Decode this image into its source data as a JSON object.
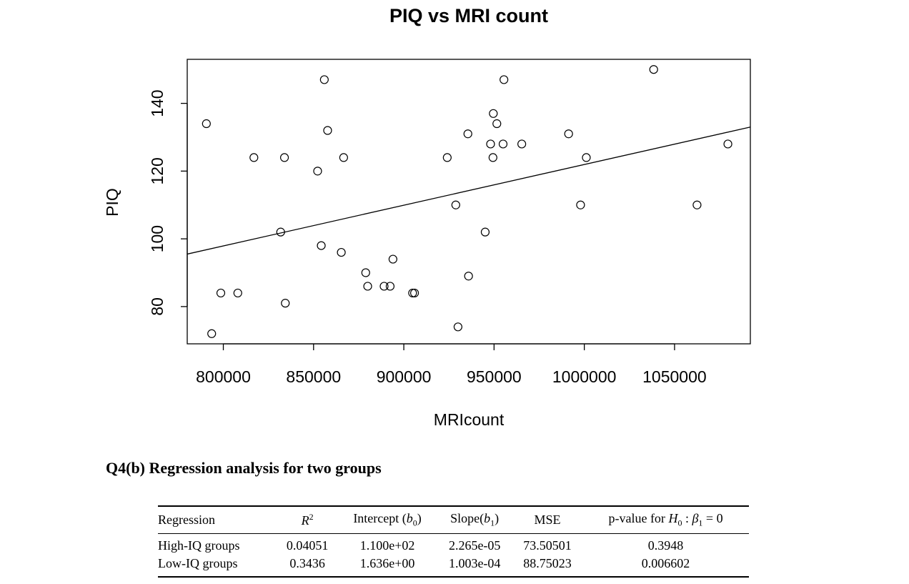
{
  "chart_data": {
    "type": "scatter",
    "title": "PIQ vs MRI count",
    "xlabel": "MRIcount",
    "ylabel": "PIQ",
    "xlim": [
      780000,
      1092000
    ],
    "ylim": [
      69,
      153
    ],
    "xticks": [
      800000,
      850000,
      900000,
      950000,
      1000000,
      1050000
    ],
    "xtick_labels": [
      "800000",
      "850000",
      "900000",
      "950000",
      "1000000",
      "1050000"
    ],
    "yticks": [
      80,
      100,
      120,
      140
    ],
    "ytick_labels": [
      "80",
      "100",
      "120",
      "140"
    ],
    "grid": false,
    "x": [
      790619,
      793549,
      798612,
      808020,
      816932,
      831772,
      833868,
      834344,
      852244,
      854258,
      855960,
      857782,
      865363,
      866662,
      878897,
      879987,
      889083,
      892420,
      893983,
      904858,
      905940,
      924059,
      928799,
      930016,
      935494,
      935863,
      945088,
      948066,
      949395,
      949589,
      951545,
      955003,
      955466,
      965353,
      991305,
      997925,
      1001121,
      1038437,
      1062462,
      1079549
    ],
    "y": [
      134,
      72,
      84,
      84,
      124,
      102,
      124,
      81,
      120,
      98,
      147,
      132,
      96,
      124,
      90,
      86,
      86,
      86,
      94,
      84,
      84,
      124,
      110,
      74,
      131,
      89,
      102,
      128,
      124,
      137,
      134,
      128,
      147,
      128,
      131,
      110,
      124,
      150,
      110,
      128
    ],
    "regression_line": {
      "intercept": 1.744,
      "slope": 0.0001202
    }
  },
  "section": {
    "heading": "Q4(b) Regression analysis for two groups"
  },
  "table": {
    "headers": {
      "regression": "Regression",
      "r2_base": "R",
      "r2_sup": "2",
      "intercept_text": "Intercept (",
      "intercept_var": "b",
      "intercept_sub": "0",
      "intercept_close": ")",
      "slope_text": "Slope(",
      "slope_var": "b",
      "slope_sub": "1",
      "slope_close": ")",
      "mse": "MSE",
      "pvalue_text": "p-value for ",
      "pvalue_h": "H",
      "pvalue_h_sub": "0",
      "pvalue_colon": " : ",
      "pvalue_beta": "β",
      "pvalue_beta_sub": "1",
      "pvalue_eq": " = 0"
    },
    "rows": [
      {
        "regression": "High-IQ groups",
        "r2": "0.04051",
        "intercept": "1.100e+02",
        "slope": "2.265e-05",
        "mse": "73.50501",
        "pvalue": "0.3948"
      },
      {
        "regression": "Low-IQ groups",
        "r2": "0.3436",
        "intercept": "1.636e+00",
        "slope": "1.003e-04",
        "mse": "88.75023",
        "pvalue": "0.006602"
      }
    ]
  }
}
